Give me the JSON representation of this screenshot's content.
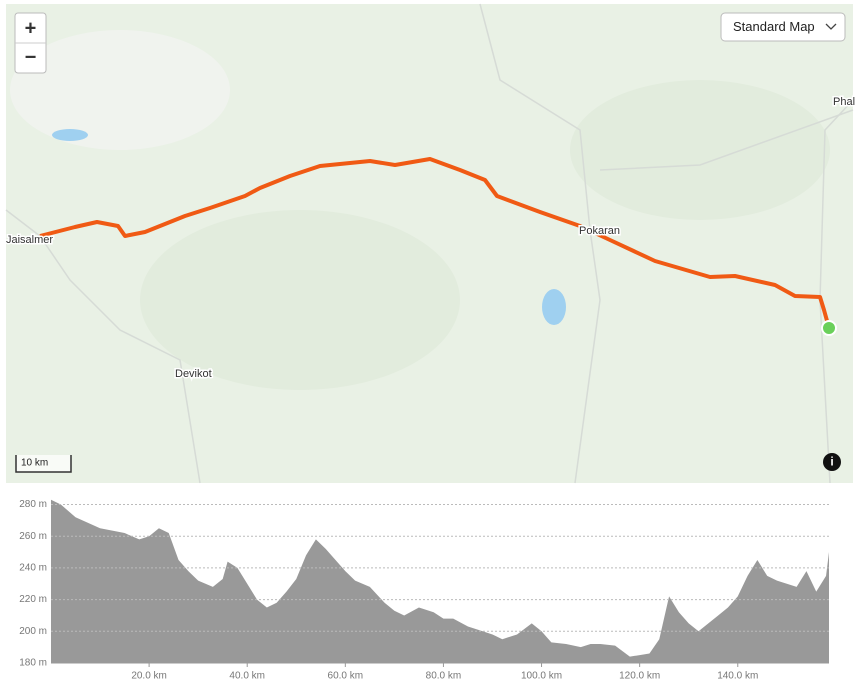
{
  "map": {
    "labels": {
      "jaisalmer": "Jaisalmer",
      "pokaran": "Pokaran",
      "devikot": "Devikot",
      "phal": "Phal"
    },
    "zoom_in": "+",
    "zoom_out": "−",
    "layer_select": "Standard Map",
    "scale": "10 km",
    "info": "i"
  },
  "chart_data": {
    "type": "area",
    "color": "#999999",
    "x": [
      0,
      2,
      5,
      10,
      15,
      18,
      20,
      22,
      24,
      26,
      28,
      30,
      33,
      35,
      36,
      38,
      40,
      42,
      44,
      46,
      48,
      50,
      52,
      54,
      56,
      58,
      60,
      62,
      65,
      68,
      70,
      72,
      75,
      78,
      80,
      82,
      85,
      88,
      90,
      92,
      95,
      98,
      100,
      102,
      105,
      108,
      110,
      112,
      115,
      118,
      120,
      122,
      124,
      126,
      128,
      130,
      132,
      134,
      136,
      138,
      140,
      142,
      144,
      146,
      148,
      150,
      152,
      154,
      156,
      158,
      158.6
    ],
    "values": [
      283,
      280,
      272,
      265,
      262,
      258,
      260,
      265,
      262,
      245,
      238,
      232,
      228,
      233,
      244,
      240,
      230,
      220,
      215,
      218,
      225,
      233,
      248,
      258,
      252,
      245,
      238,
      232,
      228,
      218,
      213,
      210,
      215,
      212,
      208,
      208,
      203,
      200,
      198,
      195,
      198,
      205,
      200,
      193,
      192,
      190,
      192,
      192,
      191,
      184,
      185,
      186,
      195,
      222,
      212,
      205,
      200,
      205,
      210,
      215,
      222,
      235,
      245,
      235,
      232,
      230,
      228,
      238,
      225,
      235,
      250
    ],
    "xlim": [
      0,
      158.6
    ],
    "ylim": [
      180,
      286
    ],
    "xticks": [
      {
        "value": 20,
        "label": "20.0 km"
      },
      {
        "value": 40,
        "label": "40.0 km"
      },
      {
        "value": 60,
        "label": "60.0 km"
      },
      {
        "value": 80,
        "label": "80.0 km"
      },
      {
        "value": 100,
        "label": "100.0 km"
      },
      {
        "value": 120,
        "label": "120.0 km"
      },
      {
        "value": 140,
        "label": "140.0 km"
      }
    ],
    "yticks": [
      {
        "value": 180,
        "label": "180 m"
      },
      {
        "value": 200,
        "label": "200 m"
      },
      {
        "value": 220,
        "label": "220 m"
      },
      {
        "value": 240,
        "label": "240 m"
      },
      {
        "value": 260,
        "label": "260 m"
      },
      {
        "value": 280,
        "label": "280 m"
      }
    ],
    "grid": true
  }
}
